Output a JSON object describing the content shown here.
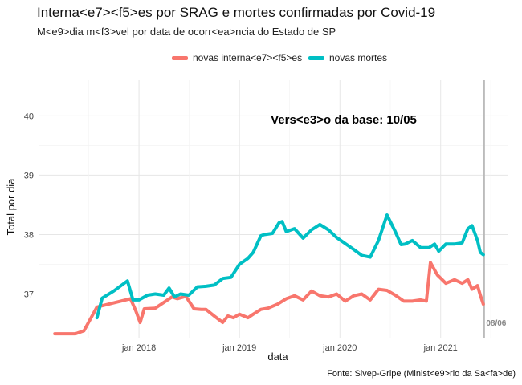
{
  "chart_data": {
    "type": "line",
    "title": "Interna<e7><f5>es por SRAG e mortes confirmadas por Covid-19",
    "subtitle": "M<e9>dia m<f3>vel por data de ocorr<ea>ncia do Estado de SP",
    "xlabel": "data",
    "ylabel": "Total por dia",
    "caption": "Fonte: Sivep-Gripe (Minist<e9>rio da Sa<fa>de)",
    "annotation": "Vers<e3>o da base: 10/05",
    "vline_label": "08/06",
    "vline_x": "2021-06-08",
    "legend_position": "top",
    "grid": true,
    "xlim": [
      "2017-01-01",
      "2021-09-01"
    ],
    "ylim": [
      36.25,
      40.6
    ],
    "x_ticks": [
      "jan 2018",
      "jan 2019",
      "jan 2020",
      "jan 2021"
    ],
    "y_ticks": [
      37,
      38,
      39,
      40
    ],
    "colors": {
      "internacoes": "#F8766D",
      "mortes": "#00BFC4",
      "vline": "#BBBBBB"
    },
    "series": [
      {
        "name": "novas interna<e7><f5>es",
        "color": "#F8766D",
        "x": [
          "2017-03-01",
          "2017-05-15",
          "2017-06-15",
          "2017-08-01",
          "2017-10-01",
          "2017-12-01",
          "2017-12-20",
          "2018-01-05",
          "2018-01-20",
          "2018-03-01",
          "2018-05-01",
          "2018-05-20",
          "2018-06-20",
          "2018-07-20",
          "2018-08-15",
          "2018-09-01",
          "2018-10-01",
          "2018-11-01",
          "2018-11-20",
          "2018-12-10",
          "2019-01-01",
          "2019-02-01",
          "2019-02-20",
          "2019-03-20",
          "2019-04-15",
          "2019-05-20",
          "2019-06-20",
          "2019-07-20",
          "2019-08-20",
          "2019-09-20",
          "2019-10-20",
          "2019-11-20",
          "2019-12-20",
          "2020-01-20",
          "2020-02-20",
          "2020-03-20",
          "2020-04-20",
          "2020-05-20",
          "2020-06-20",
          "2020-07-20",
          "2020-08-20",
          "2020-09-20",
          "2020-10-20",
          "2020-11-10",
          "2020-11-25",
          "2020-12-20",
          "2021-01-20",
          "2021-02-20",
          "2021-03-20",
          "2021-04-10",
          "2021-04-25",
          "2021-05-15",
          "2021-05-25",
          "2021-06-05"
        ],
        "values": [
          36.33,
          36.33,
          36.38,
          36.78,
          36.85,
          36.92,
          36.72,
          36.52,
          36.75,
          36.76,
          36.95,
          36.92,
          36.96,
          36.75,
          36.74,
          36.74,
          36.63,
          36.52,
          36.63,
          36.6,
          36.66,
          36.6,
          36.66,
          36.74,
          36.76,
          36.83,
          36.92,
          36.97,
          36.9,
          37.05,
          36.97,
          36.95,
          37.0,
          36.88,
          36.97,
          37.0,
          36.9,
          37.08,
          37.06,
          36.98,
          36.88,
          36.88,
          36.9,
          36.88,
          37.53,
          37.32,
          37.18,
          37.24,
          37.18,
          37.24,
          37.08,
          37.14,
          36.98,
          36.83
        ]
      },
      {
        "name": "novas mortes",
        "color": "#00BFC4",
        "x": [
          "2017-08-01",
          "2017-08-20",
          "2017-10-01",
          "2017-11-20",
          "2017-12-10",
          "2018-01-01",
          "2018-02-01",
          "2018-03-01",
          "2018-04-01",
          "2018-04-20",
          "2018-05-10",
          "2018-06-01",
          "2018-07-01",
          "2018-08-01",
          "2018-09-01",
          "2018-10-01",
          "2018-11-01",
          "2018-12-01",
          "2019-01-01",
          "2019-02-01",
          "2019-02-20",
          "2019-03-20",
          "2019-04-01",
          "2019-05-01",
          "2019-05-25",
          "2019-06-05",
          "2019-06-20",
          "2019-07-20",
          "2019-08-20",
          "2019-09-20",
          "2019-10-20",
          "2019-11-20",
          "2019-12-20",
          "2020-01-20",
          "2020-02-20",
          "2020-03-20",
          "2020-04-20",
          "2020-05-20",
          "2020-06-20",
          "2020-07-20",
          "2020-08-10",
          "2020-08-25",
          "2020-09-20",
          "2020-10-20",
          "2020-11-20",
          "2020-12-10",
          "2020-12-25",
          "2021-01-20",
          "2021-02-20",
          "2021-03-20",
          "2021-04-10",
          "2021-04-25",
          "2021-05-15",
          "2021-05-25",
          "2021-06-05"
        ],
        "values": [
          36.6,
          36.93,
          37.05,
          37.22,
          36.9,
          36.9,
          36.98,
          37.0,
          36.98,
          37.1,
          36.95,
          37.0,
          36.98,
          37.12,
          37.13,
          37.15,
          37.26,
          37.28,
          37.5,
          37.6,
          37.7,
          37.98,
          38.0,
          38.02,
          38.2,
          38.22,
          38.05,
          38.1,
          37.94,
          38.08,
          38.17,
          38.08,
          37.95,
          37.85,
          37.75,
          37.65,
          37.62,
          37.9,
          38.33,
          38.05,
          37.83,
          37.84,
          37.9,
          37.78,
          37.78,
          37.84,
          37.72,
          37.84,
          37.84,
          37.86,
          38.1,
          38.15,
          37.9,
          37.7,
          37.66
        ]
      }
    ]
  }
}
